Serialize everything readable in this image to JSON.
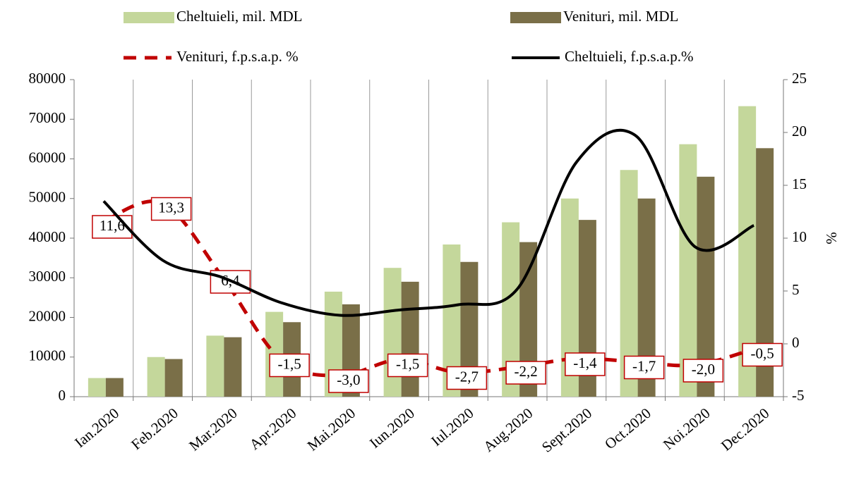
{
  "chart_data": {
    "type": "bar-line",
    "categories": [
      "Ian.2020",
      "Feb.2020",
      "Mar.2020",
      "Apr.2020",
      "Mai.2020",
      "Iun.2020",
      "Iul.2020",
      "Aug.2020",
      "Sept.2020",
      "Oct.2020",
      "Noi.2020",
      "Dec.2020"
    ],
    "series": [
      {
        "name": "Cheltuieli, mil. MDL",
        "type": "bar",
        "color": "#c4d79b",
        "values": [
          4700,
          10000,
          15400,
          21400,
          26500,
          32500,
          38400,
          44000,
          50000,
          57200,
          63700,
          73300
        ]
      },
      {
        "name": "Venituri, mil. MDL",
        "type": "bar",
        "color": "#7a6f48",
        "values": [
          4700,
          9500,
          15000,
          18800,
          23300,
          29000,
          34000,
          39000,
          44600,
          50000,
          55500,
          62700
        ]
      },
      {
        "name": "Venituri, f.p.s.a.p. %",
        "type": "line",
        "dashed": true,
        "axis": "y2",
        "color": "#c00000",
        "values": [
          11.6,
          13.3,
          6.4,
          -1.5,
          -3.0,
          -1.5,
          -2.7,
          -2.2,
          -1.4,
          -1.7,
          -2.0,
          -0.5
        ],
        "value_labels": [
          "11,6",
          "13,3",
          "6,4",
          "-1,5",
          "-3,0",
          "-1,5",
          "-2,7",
          "-2,2",
          "-1,4",
          "-1,7",
          "-2,0",
          "-0,5"
        ]
      },
      {
        "name": "Cheltuieli, f.p.s.a.p.%",
        "type": "line",
        "axis": "y2",
        "color": "#000000",
        "values": [
          13.5,
          7.9,
          6.3,
          3.9,
          2.7,
          3.2,
          3.7,
          5.2,
          17.2,
          19.7,
          9.2,
          11.2
        ]
      }
    ],
    "ylim": [
      0,
      80000
    ],
    "yticks": [
      0,
      10000,
      20000,
      30000,
      40000,
      50000,
      60000,
      70000,
      80000
    ],
    "y2lim": [
      -5,
      25
    ],
    "y2ticks": [
      -5,
      0,
      5,
      10,
      15,
      20,
      25
    ],
    "y2label": "%",
    "grid": "vertical"
  }
}
